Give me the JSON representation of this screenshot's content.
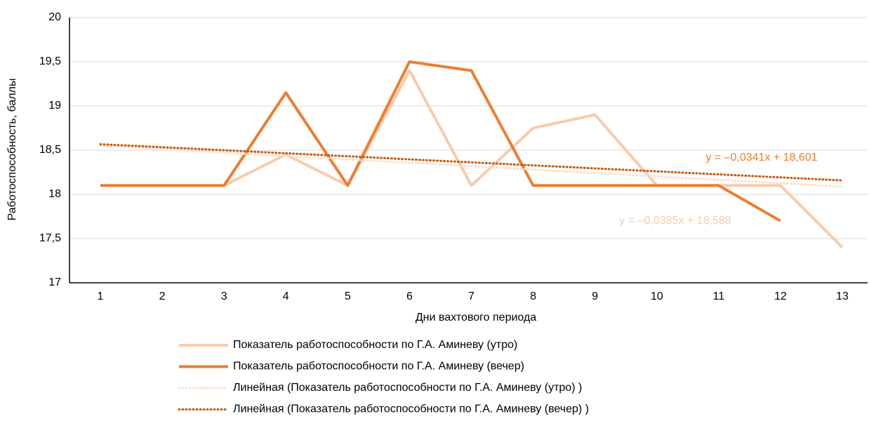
{
  "chart_data": {
    "type": "line",
    "x_label": "Дни вахтового периода",
    "y_label": "Работоспособность, баллы",
    "categories": [
      "1",
      "2",
      "3",
      "4",
      "5",
      "6",
      "7",
      "8",
      "9",
      "10",
      "11",
      "12",
      "13"
    ],
    "ylim": [
      17,
      20
    ],
    "yticks": [
      17,
      {
        "value": 17.5,
        "label": "17,5"
      },
      18,
      {
        "value": 18.5,
        "label": "18,5"
      },
      19,
      {
        "value": 19.5,
        "label": "19,5"
      },
      20
    ],
    "grid": true,
    "legend": "bottom",
    "series": [
      {
        "name": "Показатель работоспособности по Г.А. Аминеву (утро)",
        "color": "#f8cbad",
        "dotted": false,
        "values": [
          18.1,
          18.1,
          18.1,
          18.45,
          18.1,
          19.4,
          18.1,
          18.75,
          18.9,
          18.1,
          18.1,
          18.1,
          17.4
        ]
      },
      {
        "name": "Показатель работоспособности по Г.А. Аминеву (вечер)",
        "color": "#ed7d31",
        "dotted": false,
        "values": [
          18.1,
          18.1,
          18.1,
          19.15,
          18.1,
          19.5,
          19.4,
          18.1,
          18.1,
          18.1,
          18.1,
          17.7,
          null
        ]
      },
      {
        "name": "Линейная (Показатель работоспособности по Г.А. Аминеву (утро) )",
        "color": "#fbe0cc",
        "dotted": true,
        "values": [
          18.55,
          18.511,
          18.473,
          18.434,
          18.396,
          18.357,
          18.319,
          18.28,
          18.242,
          18.203,
          18.165,
          18.126,
          18.088
        ]
      },
      {
        "name": "Линейная (Показатель работоспособности по Г.А. Аминеву (вечер) )",
        "color": "#c55a11",
        "dotted": true,
        "values": [
          18.567,
          18.533,
          18.499,
          18.465,
          18.431,
          18.396,
          18.362,
          18.328,
          18.294,
          18.26,
          18.226,
          18.192,
          18.158
        ]
      }
    ],
    "annotations": [
      {
        "text": "y = –0,0341x + 18,601",
        "color": "#ed7d31"
      },
      {
        "text": "y = –0,0385x + 18,588",
        "color": "#f8cbad"
      }
    ]
  }
}
